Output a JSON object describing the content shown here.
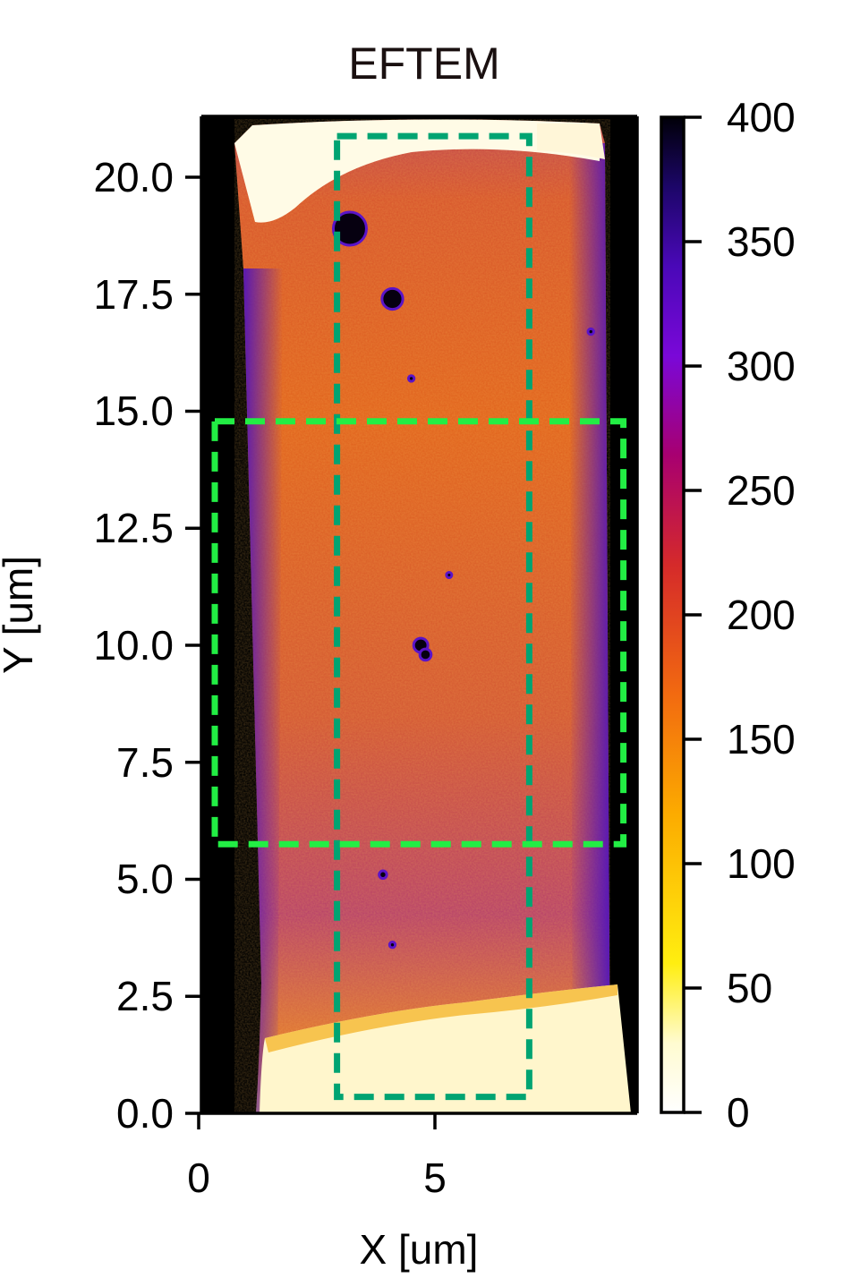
{
  "chart_data": {
    "type": "heatmap",
    "title": "EFTEM",
    "xlabel": "X [um]",
    "ylabel": "Y [um]",
    "xlim": [
      0,
      9.3
    ],
    "ylim": [
      0,
      21.3
    ],
    "x_ticks": [
      "0",
      "5"
    ],
    "y_ticks": [
      "0.0",
      "2.5",
      "5.0",
      "7.5",
      "10.0",
      "12.5",
      "15.0",
      "17.5",
      "20.0"
    ],
    "colorbar": {
      "min": 0,
      "max": 400,
      "colormap": "gnuplot2-like (white-yellow-orange-red-purple-black)",
      "ticks": [
        "0",
        "50",
        "100",
        "150",
        "200",
        "250",
        "300",
        "350",
        "400"
      ]
    },
    "regions": [
      {
        "color": "#00a472",
        "style": "dashed",
        "x": [
          2.9,
          7.1
        ],
        "y": [
          0.35,
          20.85
        ]
      },
      {
        "color": "#22ee44",
        "style": "dashed",
        "x": [
          0.3,
          9.1
        ],
        "y": [
          5.7,
          14.75
        ]
      }
    ],
    "colors": {
      "background": "#000000",
      "specimen": "#e0621e",
      "edge_low": "#fffbe8",
      "box_dark_green": "#00a472",
      "box_bright_green": "#22ee44"
    },
    "grid": false,
    "pores": [
      {
        "x": 3.2,
        "y": 18.9,
        "r": 0.35
      },
      {
        "x": 4.1,
        "y": 17.4,
        "r": 0.22
      },
      {
        "x": 4.7,
        "y": 10.0,
        "r": 0.15
      },
      {
        "x": 4.8,
        "y": 9.8,
        "r": 0.12
      },
      {
        "x": 4.5,
        "y": 15.7,
        "r": 0.06
      },
      {
        "x": 3.9,
        "y": 5.1,
        "r": 0.08
      },
      {
        "x": 5.3,
        "y": 11.5,
        "r": 0.05
      },
      {
        "x": 4.1,
        "y": 3.6,
        "r": 0.06
      },
      {
        "x": 8.3,
        "y": 16.7,
        "r": 0.06
      }
    ]
  }
}
